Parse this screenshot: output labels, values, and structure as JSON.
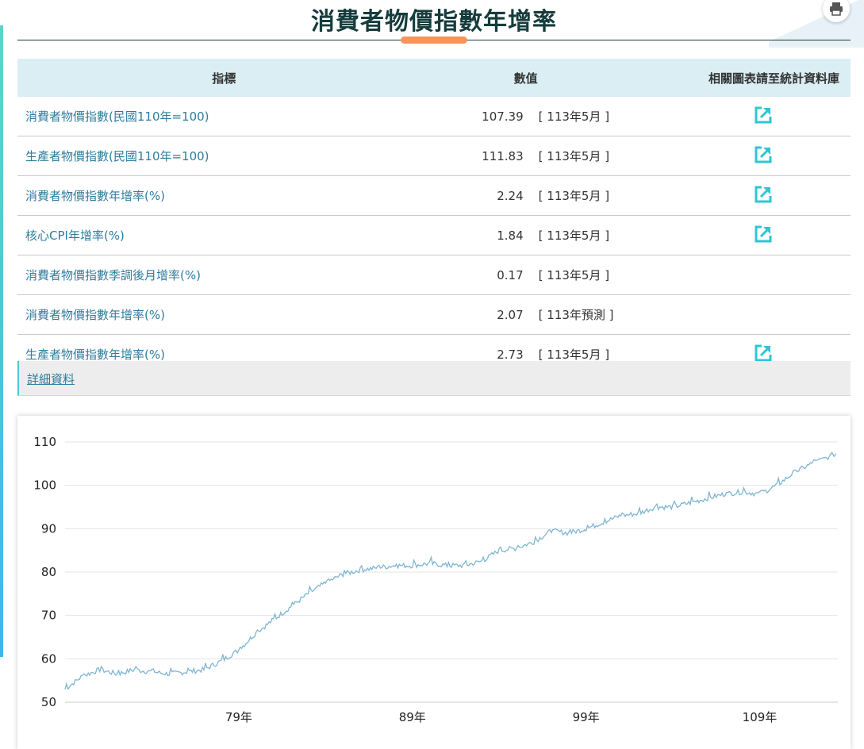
{
  "page": {
    "title": "消費者物價指數年增率",
    "print_icon": "printer-icon"
  },
  "table": {
    "headers": {
      "indicator": "指標",
      "value": "數值",
      "link": "相關圖表請至統計資料庫"
    },
    "rows": [
      {
        "name": "消費者物價指數(民國110年=100)",
        "value": "107.39",
        "period": "[ 113年5月 ]",
        "has_link": true
      },
      {
        "name": "生產者物價指數(民國110年=100)",
        "value": "111.83",
        "period": "[ 113年5月 ]",
        "has_link": true
      },
      {
        "name": "消費者物價指數年增率(%)",
        "value": "2.24",
        "period": "[ 113年5月 ]",
        "has_link": true
      },
      {
        "name": "核心CPI年增率(%)",
        "value": "1.84",
        "period": "[ 113年5月 ]",
        "has_link": true
      },
      {
        "name": "消費者物價指數季調後月增率(%)",
        "value": "0.17",
        "period": "[ 113年5月 ]",
        "has_link": false
      },
      {
        "name": "消費者物價指數年增率(%)",
        "value": "2.07",
        "period": "[ 113年預測 ]",
        "has_link": false
      },
      {
        "name": "生產者物價指數年增率(%)",
        "value": "2.73",
        "period": "[ 113年5月 ]",
        "has_link": true
      }
    ],
    "link_icon": "external-link-icon",
    "link_color": "#2fc5d3"
  },
  "detail": {
    "label": "詳細資料"
  },
  "chart_data": {
    "type": "line",
    "title": "",
    "xlabel": "",
    "ylabel": "",
    "x_unit": "民國年",
    "x_ticks": [
      "79年",
      "89年",
      "99年",
      "109年"
    ],
    "x_tick_values": [
      79,
      89,
      99,
      109
    ],
    "xlim": [
      69,
      113.5
    ],
    "y_ticks": [
      50,
      60,
      70,
      80,
      90,
      100,
      110
    ],
    "ylim": [
      50,
      110
    ],
    "grid": true,
    "legend": "none",
    "line_color": "#7fb6d3",
    "series": [
      {
        "x": [
          69,
          70,
          71,
          72,
          73,
          74,
          75,
          76,
          77,
          78,
          79,
          80,
          81,
          82,
          83,
          84,
          85,
          86,
          87,
          88,
          89,
          90,
          91,
          92,
          93,
          94,
          95,
          96,
          97,
          98,
          99,
          100,
          101,
          102,
          103,
          104,
          105,
          106,
          107,
          108,
          109,
          110,
          111,
          112,
          113.4
        ],
        "values": [
          53,
          56,
          57.5,
          56.5,
          57.5,
          57,
          56.5,
          57,
          57.5,
          59.5,
          62,
          66,
          69,
          72,
          75,
          77.5,
          79.5,
          80.5,
          81,
          81.5,
          81.5,
          82,
          81.5,
          81.5,
          82.5,
          85,
          85.5,
          87,
          89.5,
          89,
          90,
          91.5,
          93,
          93.5,
          95,
          95,
          96,
          97,
          98,
          98.5,
          98,
          100,
          103,
          105,
          107.3
        ]
      }
    ]
  }
}
